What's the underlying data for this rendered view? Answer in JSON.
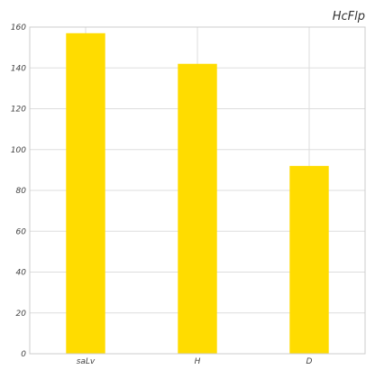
{
  "chart_data": {
    "type": "bar",
    "title": "HcFlp",
    "xlabel": "",
    "ylabel": "",
    "categories": [
      "saLv",
      "H",
      "D"
    ],
    "values": [
      157,
      142,
      92
    ],
    "ylim": [
      0,
      160
    ],
    "yticks": [
      0,
      20,
      40,
      60,
      80,
      100,
      120,
      140,
      160
    ],
    "grid": true,
    "legend": "none",
    "colors": {
      "bar": "#FFDC00",
      "grid": "#DDDDDD",
      "axis": "#CCCCCC"
    }
  }
}
